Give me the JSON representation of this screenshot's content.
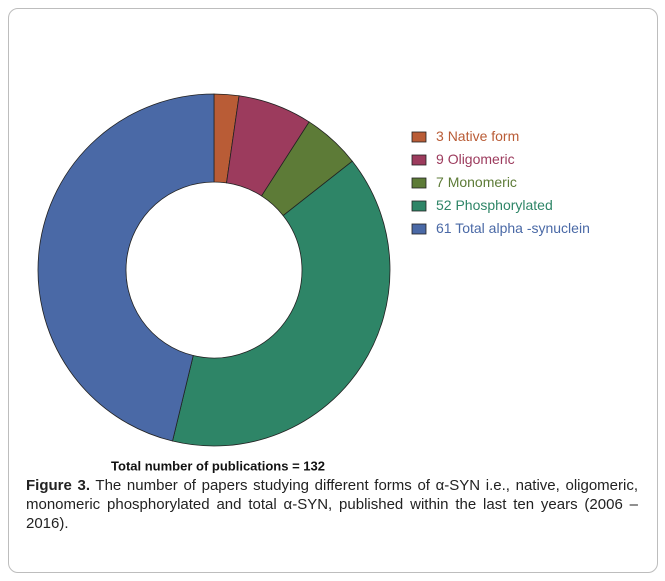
{
  "chart_data": {
    "type": "donut",
    "categories": [
      "Native form",
      "Oligomeric",
      "Monomeric",
      "Phosphorylated",
      "Total alpha -synuclein"
    ],
    "values": [
      3,
      9,
      7,
      52,
      61
    ],
    "colors": [
      "#b95c36",
      "#9c3b5d",
      "#5d7b37",
      "#2e8567",
      "#4a69a6"
    ],
    "annotation": "Total number of publications = 132"
  },
  "caption": {
    "label": "Figure 3.",
    "text": "The number of papers studying different forms of α-SYN i.e., native, oligomeric, monomeric phosphorylated and total α-SYN, published within the last ten years (2006 – 2016)."
  }
}
